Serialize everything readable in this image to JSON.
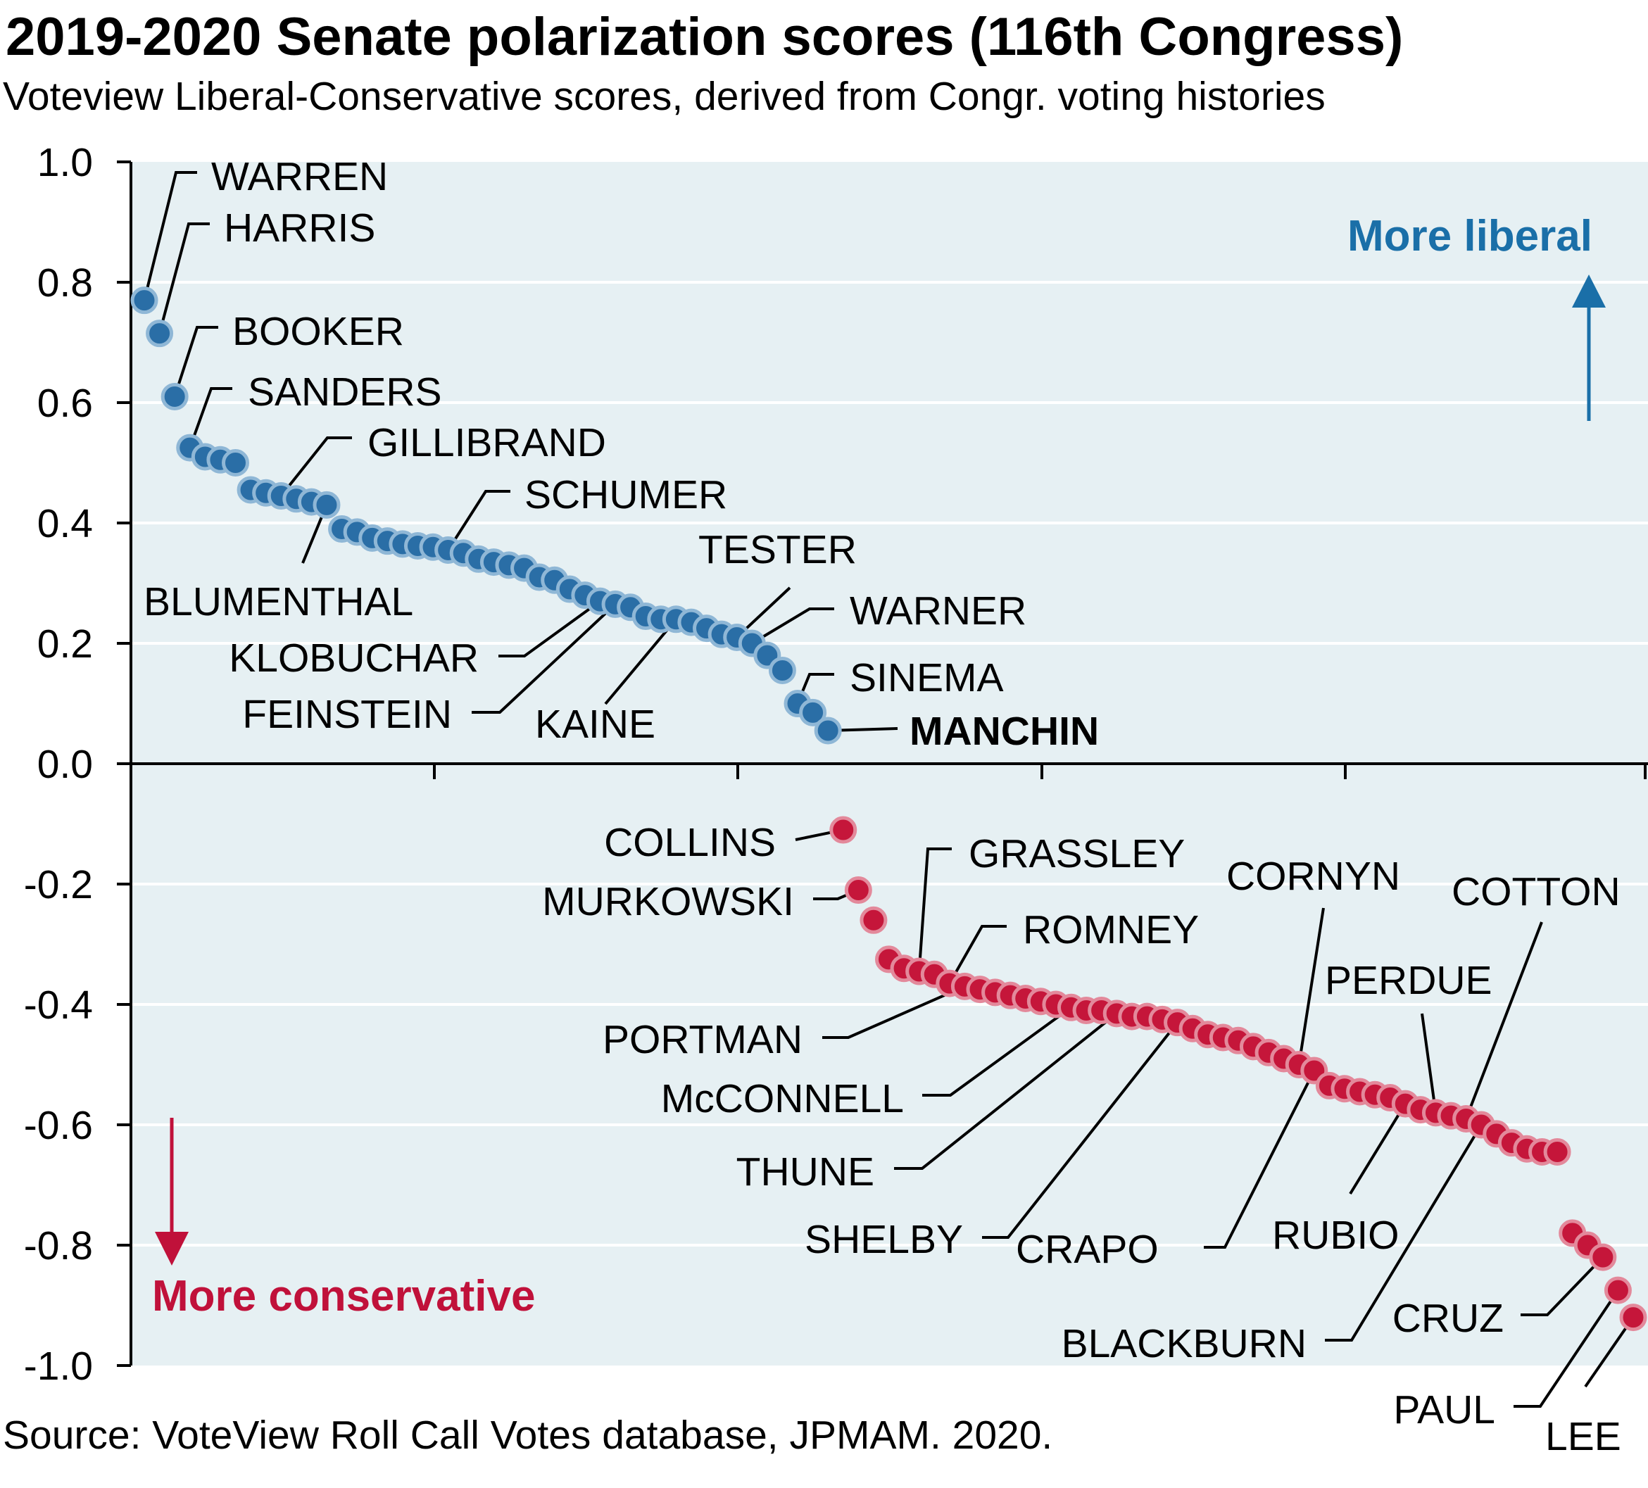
{
  "header": {
    "title": "2019-2020 Senate polarization scores (116th Congress)",
    "subtitle": "Voteview Liberal-Conservative scores, derived from Congr. voting histories"
  },
  "footer": {
    "source": "Source: VoteView Roll Call Votes database, JPMAM. 2020."
  },
  "colors": {
    "panel": "#e6f0f3",
    "democrat": "#2a6ea6",
    "democrat_edge": "#8fb7d6",
    "republican": "#c5163a",
    "republican_edge": "#e3899b",
    "liberal_text": "#1a6fa8",
    "conservative_text": "#c0113a"
  },
  "chart_data": {
    "type": "scatter",
    "title": "2019-2020 Senate polarization scores (116th Congress)",
    "ylabel": "",
    "ylim": [
      -1.0,
      1.0
    ],
    "yticks": [
      "1.0",
      "0.8",
      "0.6",
      "0.4",
      "0.2",
      "0.0",
      "-0.2",
      "-0.4",
      "-0.6",
      "-0.8",
      "-1.0"
    ],
    "xlim": [
      0,
      100
    ],
    "x_axis_tick_labels": false,
    "grid": true,
    "annotations": {
      "liberal": "More liberal",
      "conservative": "More conservative"
    },
    "series": [
      {
        "party": "democrat",
        "points": [
          [
            1,
            0.77
          ],
          [
            2,
            0.715
          ],
          [
            3,
            0.61
          ],
          [
            4,
            0.525
          ],
          [
            5,
            0.51
          ],
          [
            6,
            0.505
          ],
          [
            7,
            0.5
          ],
          [
            8,
            0.455
          ],
          [
            9,
            0.45
          ],
          [
            10,
            0.445
          ],
          [
            11,
            0.44
          ],
          [
            12,
            0.435
          ],
          [
            13,
            0.43
          ],
          [
            14,
            0.39
          ],
          [
            15,
            0.385
          ],
          [
            16,
            0.375
          ],
          [
            17,
            0.37
          ],
          [
            18,
            0.365
          ],
          [
            19,
            0.362
          ],
          [
            20,
            0.36
          ],
          [
            21,
            0.355
          ],
          [
            22,
            0.35
          ],
          [
            23,
            0.34
          ],
          [
            24,
            0.335
          ],
          [
            25,
            0.33
          ],
          [
            26,
            0.325
          ],
          [
            27,
            0.31
          ],
          [
            28,
            0.305
          ],
          [
            29,
            0.29
          ],
          [
            30,
            0.28
          ],
          [
            31,
            0.27
          ],
          [
            32,
            0.265
          ],
          [
            33,
            0.26
          ],
          [
            34,
            0.245
          ],
          [
            35,
            0.24
          ],
          [
            36,
            0.24
          ],
          [
            37,
            0.235
          ],
          [
            38,
            0.225
          ],
          [
            39,
            0.215
          ],
          [
            40,
            0.21
          ],
          [
            41,
            0.2
          ],
          [
            42,
            0.18
          ],
          [
            43,
            0.155
          ],
          [
            44,
            0.1
          ],
          [
            45,
            0.085
          ],
          [
            46,
            0.055
          ]
        ]
      },
      {
        "party": "republican",
        "points": [
          [
            47,
            -0.11
          ],
          [
            48,
            -0.21
          ],
          [
            49,
            -0.26
          ],
          [
            50,
            -0.325
          ],
          [
            51,
            -0.34
          ],
          [
            52,
            -0.345
          ],
          [
            53,
            -0.35
          ],
          [
            54,
            -0.365
          ],
          [
            55,
            -0.37
          ],
          [
            56,
            -0.375
          ],
          [
            57,
            -0.38
          ],
          [
            58,
            -0.385
          ],
          [
            59,
            -0.39
          ],
          [
            60,
            -0.395
          ],
          [
            61,
            -0.4
          ],
          [
            62,
            -0.405
          ],
          [
            63,
            -0.41
          ],
          [
            64,
            -0.41
          ],
          [
            65,
            -0.415
          ],
          [
            66,
            -0.42
          ],
          [
            67,
            -0.42
          ],
          [
            68,
            -0.425
          ],
          [
            69,
            -0.43
          ],
          [
            70,
            -0.44
          ],
          [
            71,
            -0.45
          ],
          [
            72,
            -0.455
          ],
          [
            73,
            -0.46
          ],
          [
            74,
            -0.47
          ],
          [
            75,
            -0.48
          ],
          [
            76,
            -0.49
          ],
          [
            77,
            -0.5
          ],
          [
            78,
            -0.51
          ],
          [
            79,
            -0.535
          ],
          [
            80,
            -0.54
          ],
          [
            81,
            -0.545
          ],
          [
            82,
            -0.55
          ],
          [
            83,
            -0.555
          ],
          [
            84,
            -0.565
          ],
          [
            85,
            -0.575
          ],
          [
            86,
            -0.58
          ],
          [
            87,
            -0.585
          ],
          [
            88,
            -0.59
          ],
          [
            89,
            -0.6
          ],
          [
            90,
            -0.615
          ],
          [
            91,
            -0.63
          ],
          [
            92,
            -0.64
          ],
          [
            93,
            -0.645
          ],
          [
            94,
            -0.645
          ],
          [
            95,
            -0.78
          ],
          [
            96,
            -0.8
          ],
          [
            97,
            -0.82
          ],
          [
            98,
            -0.875
          ],
          [
            99,
            -0.92
          ]
        ]
      }
    ],
    "labels": [
      {
        "name": "WARREN",
        "index": 1
      },
      {
        "name": "HARRIS",
        "index": 2
      },
      {
        "name": "BOOKER",
        "index": 3
      },
      {
        "name": "SANDERS",
        "index": 4
      },
      {
        "name": "GILLIBRAND",
        "index": 10
      },
      {
        "name": "BLUMENTHAL",
        "index": 13
      },
      {
        "name": "SCHUMER",
        "index": 21
      },
      {
        "name": "KLOBUCHAR",
        "index": 31
      },
      {
        "name": "FEINSTEIN",
        "index": 32
      },
      {
        "name": "KAINE",
        "index": 36
      },
      {
        "name": "TESTER",
        "index": 40
      },
      {
        "name": "WARNER",
        "index": 41
      },
      {
        "name": "SINEMA",
        "index": 44
      },
      {
        "name": "MANCHIN",
        "index": 46
      },
      {
        "name": "COLLINS",
        "index": 47
      },
      {
        "name": "MURKOWSKI",
        "index": 48
      },
      {
        "name": "GRASSLEY",
        "index": 52
      },
      {
        "name": "ROMNEY",
        "index": 54
      },
      {
        "name": "PORTMAN",
        "index": 55
      },
      {
        "name": "McCONNELL",
        "index": 62
      },
      {
        "name": "THUNE",
        "index": 65
      },
      {
        "name": "SHELBY",
        "index": 69
      },
      {
        "name": "CORNYN",
        "index": 77
      },
      {
        "name": "CRAPO",
        "index": 78
      },
      {
        "name": "PERDUE",
        "index": 86
      },
      {
        "name": "RUBIO",
        "index": 84
      },
      {
        "name": "COTTON",
        "index": 88
      },
      {
        "name": "BLACKBURN",
        "index": 89
      },
      {
        "name": "CRUZ",
        "index": 97
      },
      {
        "name": "PAUL",
        "index": 98
      },
      {
        "name": "LEE",
        "index": 99
      }
    ]
  }
}
